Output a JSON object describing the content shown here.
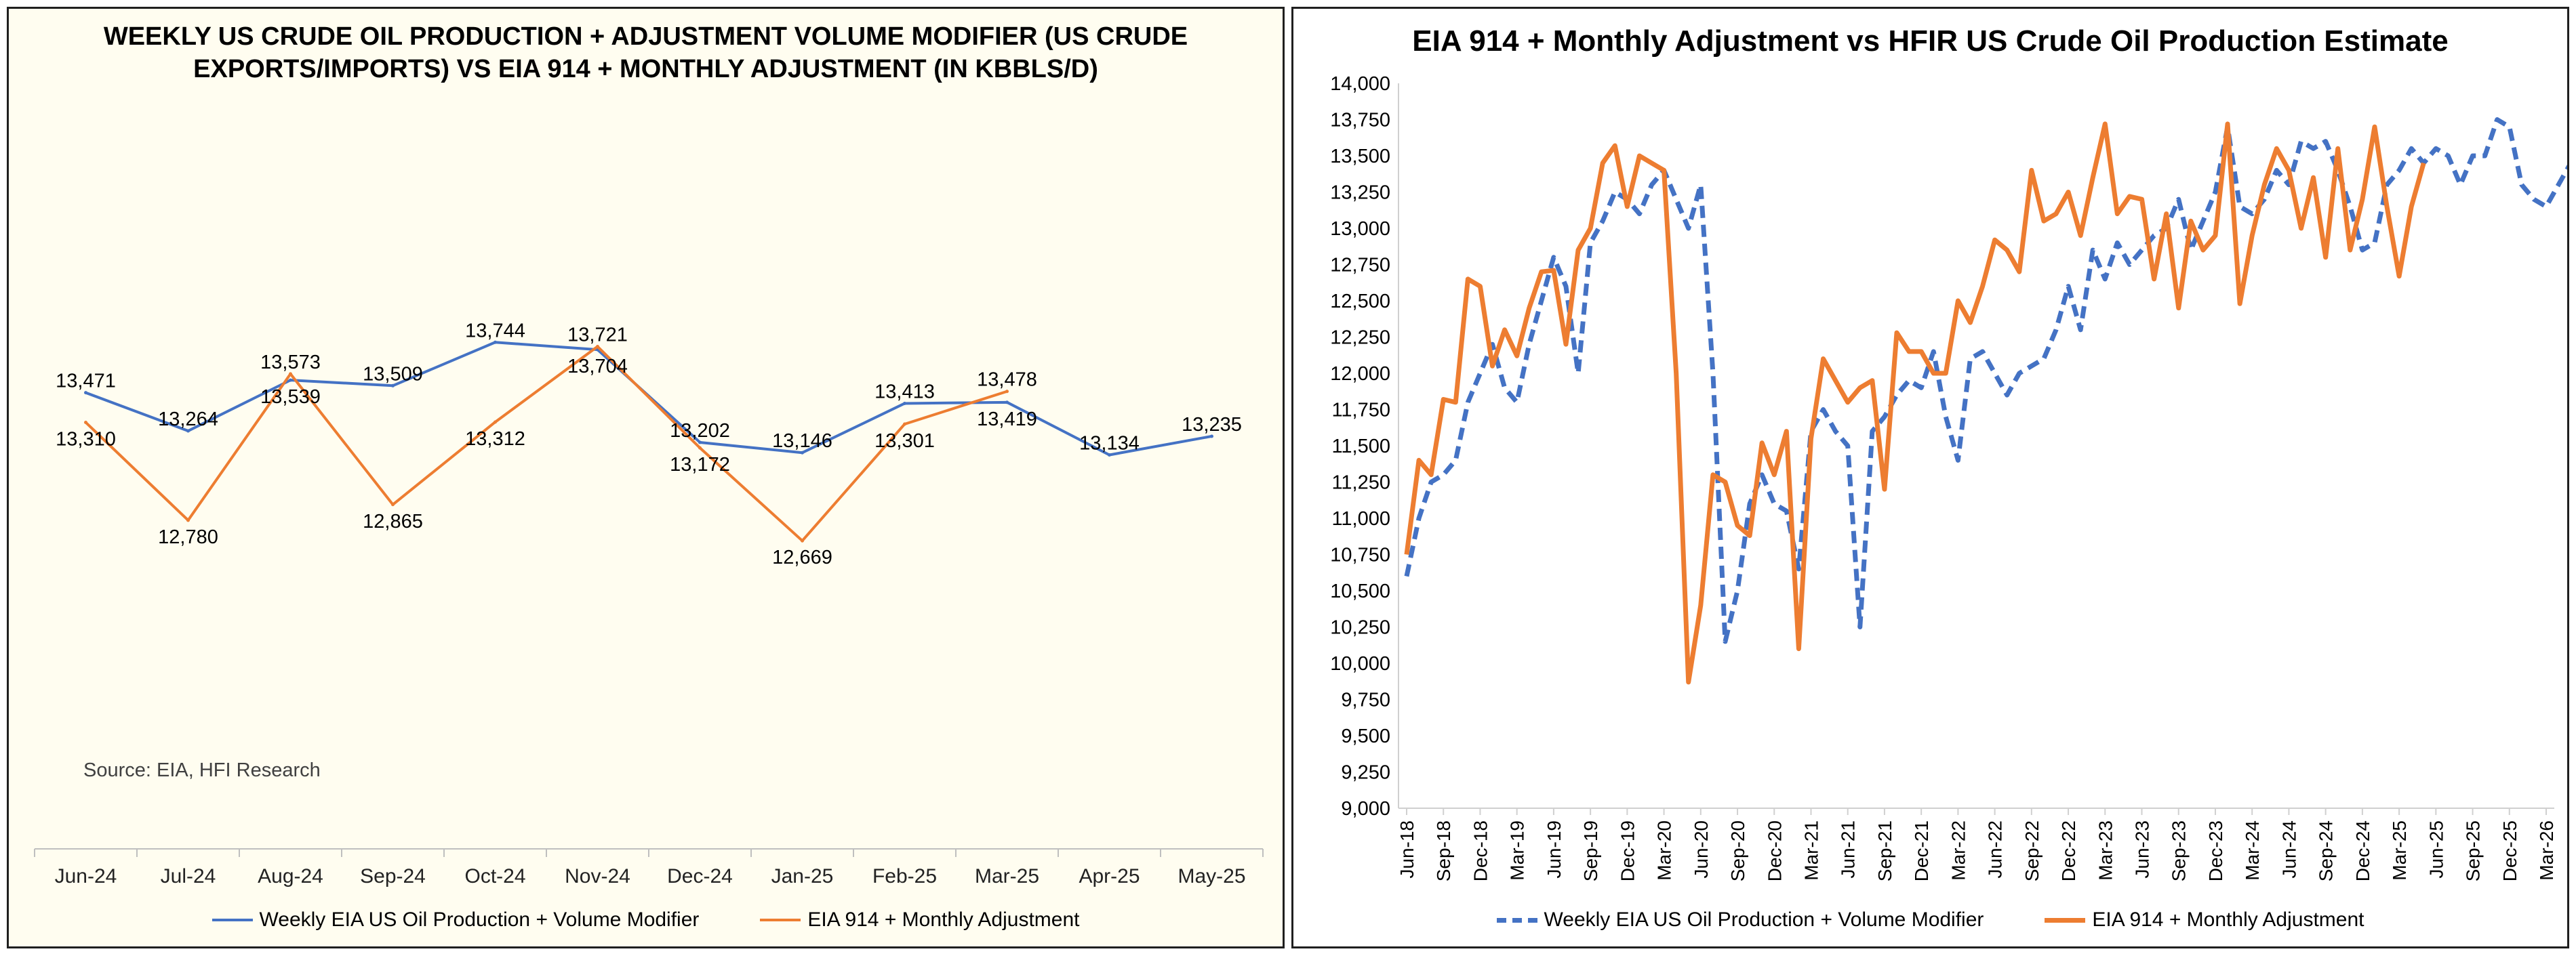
{
  "chart_data": [
    {
      "type": "line",
      "title": "WEEKLY US CRUDE OIL PRODUCTION + ADJUSTMENT VOLUME MODIFIER (US CRUDE EXPORTS/IMPORTS) VS EIA 914 + MONTHLY ADJUSTMENT (IN KBBLS/D)",
      "source": "Source: EIA, HFI Research",
      "categories": [
        "Jun-24",
        "Jul-24",
        "Aug-24",
        "Sep-24",
        "Oct-24",
        "Nov-24",
        "Dec-24",
        "Jan-25",
        "Feb-25",
        "Mar-25",
        "Apr-25",
        "May-25"
      ],
      "ylim": [
        11000,
        15000
      ],
      "grid": false,
      "legend_position": "bottom",
      "series": [
        {
          "name": "Weekly EIA US Oil Production + Volume Modifier",
          "color": "#4472c4",
          "values": [
            13471,
            13264,
            13539,
            13509,
            13744,
            13704,
            13202,
            13146,
            13413,
            13419,
            13134,
            13235
          ]
        },
        {
          "name": "EIA 914 + Monthly Adjustment",
          "color": "#ed7d31",
          "values": [
            13310,
            12780,
            13573,
            12865,
            13312,
            13721,
            13172,
            12669,
            13301,
            13478,
            null,
            null
          ]
        }
      ]
    },
    {
      "type": "line",
      "title": "EIA 914 + Monthly Adjustment vs HFIR US Crude Oil Production Estimate",
      "ylim": [
        9000,
        14000
      ],
      "yticks": [
        "9,000",
        "9,250",
        "9,500",
        "9,750",
        "10,000",
        "10,250",
        "10,500",
        "10,750",
        "11,000",
        "11,250",
        "11,500",
        "11,750",
        "12,000",
        "12,250",
        "12,500",
        "12,750",
        "13,000",
        "13,250",
        "13,500",
        "13,750",
        "14,000"
      ],
      "xticks": [
        "Jun-18",
        "Sep-18",
        "Dec-18",
        "Mar-19",
        "Jun-19",
        "Sep-19",
        "Dec-19",
        "Mar-20",
        "Jun-20",
        "Sep-20",
        "Dec-20",
        "Mar-21",
        "Jun-21",
        "Sep-21",
        "Dec-21",
        "Mar-22",
        "Jun-22",
        "Sep-22",
        "Dec-22",
        "Mar-23",
        "Jun-23",
        "Sep-23",
        "Dec-23",
        "Mar-24",
        "Jun-24",
        "Sep-24",
        "Dec-24",
        "Mar-25",
        "Jun-25",
        "Sep-25",
        "Dec-25",
        "Mar-26"
      ],
      "x_start": "Jun-18",
      "grid": false,
      "legend_position": "bottom",
      "series": [
        {
          "name": "Weekly EIA US Oil Production + Volume Modifier",
          "color": "#4472c4",
          "style": "dashed",
          "values": [
            10600,
            11000,
            11250,
            11300,
            11400,
            11800,
            12000,
            12200,
            11900,
            11800,
            12200,
            12500,
            12800,
            12600,
            12000,
            12900,
            13050,
            13250,
            13200,
            13100,
            13300,
            13400,
            13200,
            13000,
            13300,
            12000,
            10150,
            10500,
            11100,
            11300,
            11100,
            11050,
            10650,
            11600,
            11750,
            11600,
            11500,
            10250,
            11600,
            11700,
            11850,
            11950,
            11900,
            12150,
            11700,
            11400,
            12100,
            12150,
            12000,
            11850,
            12000,
            12050,
            12100,
            12300,
            12600,
            12300,
            12850,
            12650,
            12900,
            12750,
            12850,
            12950,
            13000,
            13200,
            12850,
            13050,
            13250,
            13700,
            13150,
            13100,
            13200,
            13400,
            13300,
            13600,
            13550,
            13600,
            13400,
            13150,
            12850,
            12900,
            13300,
            13400,
            13550,
            13450,
            13550,
            13500,
            13300,
            13500,
            13500,
            13750,
            13700,
            13300,
            13200,
            13150,
            13300,
            13450,
            13100,
            13250
          ]
        },
        {
          "name": "EIA 914 + Monthly Adjustment",
          "color": "#ed7d31",
          "style": "solid",
          "values": [
            10750,
            11400,
            11300,
            11820,
            11800,
            12650,
            12600,
            12050,
            12300,
            12120,
            12450,
            12700,
            12710,
            12200,
            12850,
            13000,
            13450,
            13570,
            13150,
            13500,
            13450,
            13400,
            12000,
            9870,
            10400,
            11300,
            11250,
            10950,
            10880,
            11520,
            11300,
            11600,
            10100,
            11550,
            12100,
            11950,
            11800,
            11900,
            11950,
            11200,
            12280,
            12150,
            12150,
            12000,
            12000,
            12500,
            12350,
            12600,
            12920,
            12850,
            12700,
            13400,
            13050,
            13100,
            13250,
            12950,
            13350,
            13720,
            13100,
            13220,
            13200,
            12650,
            13100,
            12450,
            13050,
            12850,
            12950,
            13720,
            12480,
            12950,
            13300,
            13550,
            13400,
            13000,
            13350,
            12800,
            13550,
            12850,
            13200,
            13700,
            13150,
            12670,
            13150,
            13450
          ]
        }
      ]
    }
  ]
}
